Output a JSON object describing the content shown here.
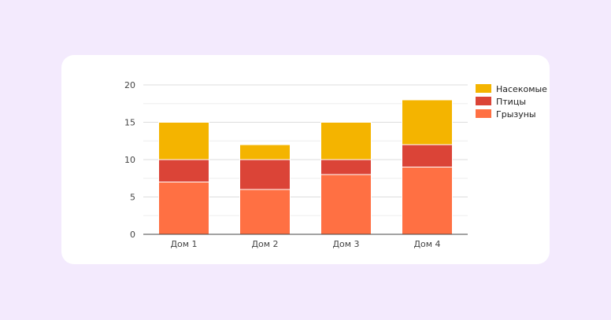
{
  "chart_data": {
    "type": "bar",
    "stacked": true,
    "categories": [
      "Дом 1",
      "Дом 2",
      "Дом 3",
      "Дом 4"
    ],
    "series": [
      {
        "name": "Грызуны",
        "values": [
          7,
          6,
          8,
          9
        ],
        "color": "#ff7043"
      },
      {
        "name": "Птицы",
        "values": [
          3,
          4,
          2,
          3
        ],
        "color": "#db4437"
      },
      {
        "name": "Насекомые",
        "values": [
          5,
          2,
          5,
          6
        ],
        "color": "#f4b400"
      }
    ],
    "legend_order": [
      "Насекомые",
      "Птицы",
      "Грызуны"
    ],
    "y_ticks": [
      "0",
      "5",
      "10",
      "15",
      "20"
    ],
    "ylim": [
      0,
      20
    ],
    "grid": true,
    "legend_position": "right"
  },
  "colors": {
    "page_background": "#f3eafd",
    "card_background": "#ffffff",
    "gridline": "#dddddd",
    "minor_gridline": "#eeeeee",
    "axis": "#444444"
  }
}
